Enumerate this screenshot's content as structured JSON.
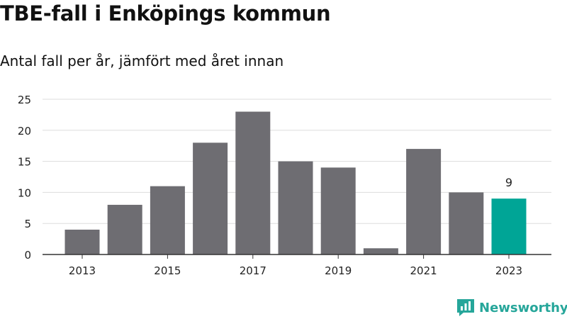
{
  "title": "TBE-fall i Enköpings kommun",
  "subtitle": "Antal fall per år, jämfört med året innan",
  "brand": {
    "name": "Newsworthy",
    "icon": "newsworthy-logo-icon"
  },
  "colors": {
    "bar": "#6e6d72",
    "highlight": "#00a596",
    "grid": "#dddddd",
    "axis": "#333333",
    "brand": "#26a69a"
  },
  "chart_data": {
    "type": "bar",
    "title": "",
    "xlabel": "",
    "ylabel": "",
    "categories": [
      "2013",
      "2014",
      "2015",
      "2016",
      "2017",
      "2018",
      "2019",
      "2020",
      "2021",
      "2022",
      "2023"
    ],
    "values": [
      4,
      8,
      11,
      18,
      23,
      15,
      14,
      1,
      17,
      10,
      9
    ],
    "x_tick_labels": [
      "2013",
      "2015",
      "2017",
      "2019",
      "2021",
      "2023"
    ],
    "ylim": [
      0,
      25
    ],
    "y_ticks": [
      0,
      5,
      10,
      15,
      20,
      25
    ],
    "grid": true,
    "highlight_index": 10,
    "data_labels": [
      {
        "index": 10,
        "text": "9"
      }
    ]
  }
}
